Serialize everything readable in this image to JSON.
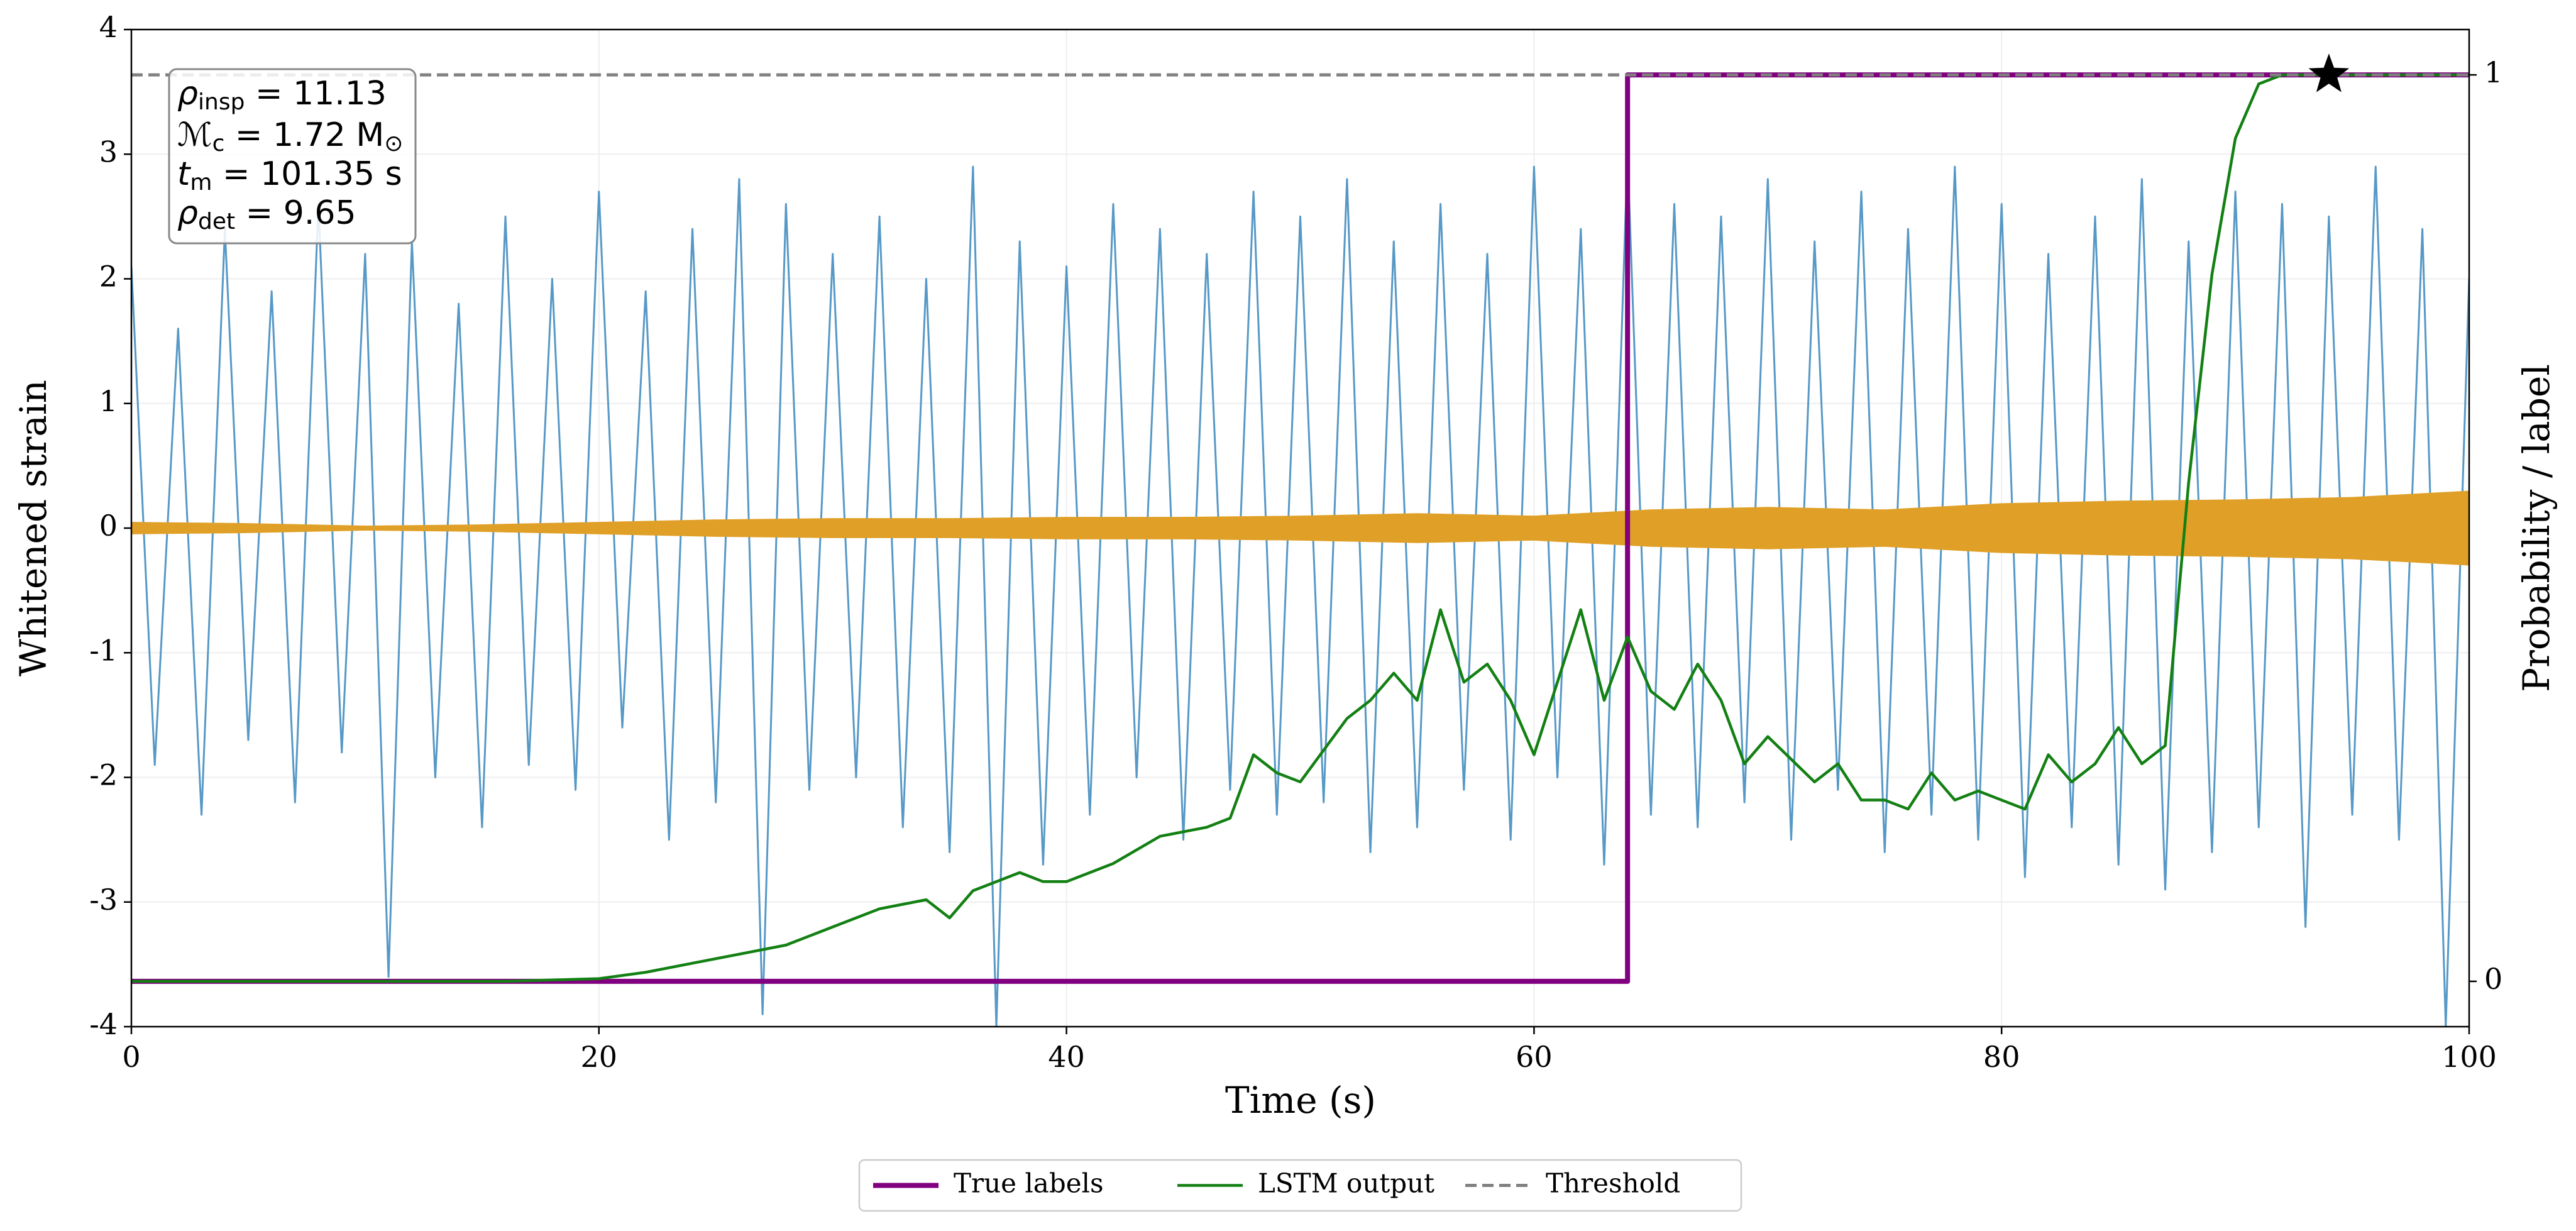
{
  "chart_data": {
    "type": "line",
    "xlabel": "Time (s)",
    "ylabel": "Whitened strain",
    "y2label": "Probability / label",
    "xlim": [
      0,
      100
    ],
    "xticks": [
      0,
      20,
      40,
      60,
      80,
      100
    ],
    "ylim": [
      -4,
      4
    ],
    "yticks": [
      -4,
      -3,
      -2,
      -1,
      0,
      1,
      2,
      3,
      4
    ],
    "y2lim": [
      -0.05,
      1.05
    ],
    "y2ticks": [
      0,
      1
    ],
    "grid": true,
    "legend": "lower center",
    "annotation": [
      {
        "main": "ρ",
        "sub": "insp",
        "rest": " = 11.13"
      },
      {
        "main": "ℳ",
        "sub": "c",
        "rest": " = 1.72 M",
        "sub2": "⊙"
      },
      {
        "main": "t",
        "sub": "m",
        "rest": " = 101.35 s"
      },
      {
        "main": "ρ",
        "sub": "det",
        "rest": " = 9.65"
      }
    ],
    "series": [
      {
        "color": "#5698c6",
        "x": [
          0,
          1,
          2,
          3,
          4,
          5,
          6,
          7,
          8,
          9,
          10,
          11,
          12,
          13,
          14,
          15,
          16,
          17,
          18,
          19,
          20,
          21,
          22,
          23,
          24,
          25,
          26,
          27,
          28,
          29,
          30,
          31,
          32,
          33,
          34,
          35,
          36,
          37,
          38,
          39,
          40,
          41,
          42,
          43,
          44,
          45,
          46,
          47,
          48,
          49,
          50,
          51,
          52,
          53,
          54,
          55,
          56,
          57,
          58,
          59,
          60,
          61,
          62,
          63,
          64,
          65,
          66,
          67,
          68,
          69,
          70,
          71,
          72,
          73,
          74,
          75,
          76,
          77,
          78,
          79,
          80,
          81,
          82,
          83,
          84,
          85,
          86,
          87,
          88,
          89,
          90,
          91,
          92,
          93,
          94,
          95,
          96,
          97,
          98,
          99,
          100
        ],
        "values": [
          2.1,
          -1.9,
          1.6,
          -2.3,
          2.4,
          -1.7,
          1.9,
          -2.2,
          2.6,
          -1.8,
          2.2,
          -3.6,
          2.3,
          -2.0,
          1.8,
          -2.4,
          2.5,
          -1.9,
          2.0,
          -2.1,
          2.7,
          -1.6,
          1.9,
          -2.5,
          2.4,
          -2.2,
          2.8,
          -3.9,
          2.6,
          -2.1,
          2.2,
          -2.0,
          2.5,
          -2.4,
          2.0,
          -2.6,
          2.9,
          -4.0,
          2.3,
          -2.7,
          2.1,
          -2.3,
          2.6,
          -2.0,
          2.4,
          -2.5,
          2.2,
          -2.1,
          2.7,
          -2.3,
          2.5,
          -2.2,
          2.8,
          -2.6,
          2.3,
          -2.4,
          2.6,
          -2.1,
          2.2,
          -2.5,
          2.9,
          -2.0,
          2.4,
          -2.7,
          3.0,
          -2.3,
          2.6,
          -2.4,
          2.5,
          -2.2,
          2.8,
          -2.5,
          2.3,
          -2.1,
          2.7,
          -2.6,
          2.4,
          -2.3,
          2.9,
          -2.5,
          2.6,
          -2.8,
          2.2,
          -2.4,
          2.5,
          -2.7,
          2.8,
          -2.9,
          2.3,
          -2.6,
          2.7,
          -2.4,
          2.6,
          -3.2,
          2.5,
          -2.3,
          2.9,
          -2.5,
          2.4,
          -4.0,
          2.0
        ]
      },
      {
        "color": "#e0a028",
        "x": [
          0,
          5,
          10,
          15,
          20,
          25,
          30,
          35,
          40,
          45,
          50,
          55,
          60,
          65,
          70,
          75,
          80,
          85,
          90,
          95,
          100
        ],
        "upper": [
          0.05,
          0.04,
          0.02,
          0.03,
          0.05,
          0.07,
          0.08,
          0.08,
          0.09,
          0.09,
          0.1,
          0.12,
          0.1,
          0.15,
          0.17,
          0.15,
          0.2,
          0.22,
          0.23,
          0.25,
          0.3
        ],
        "lower": [
          -0.05,
          -0.04,
          -0.02,
          -0.03,
          -0.05,
          -0.07,
          -0.08,
          -0.08,
          -0.09,
          -0.09,
          -0.1,
          -0.12,
          -0.1,
          -0.15,
          -0.17,
          -0.15,
          -0.2,
          -0.22,
          -0.23,
          -0.25,
          -0.3
        ]
      },
      {
        "name": "True labels",
        "color": "#800080",
        "axis": "y2",
        "x": [
          0,
          64,
          64,
          100
        ],
        "values": [
          0,
          0,
          1,
          1
        ]
      },
      {
        "name": "LSTM output",
        "color": "#138013",
        "axis": "y2",
        "x": [
          0,
          10,
          16,
          20,
          22,
          24,
          26,
          28,
          30,
          32,
          34,
          35,
          36,
          38,
          39,
          40,
          42,
          44,
          46,
          47,
          48,
          49,
          50,
          52,
          53,
          54,
          55,
          56,
          57,
          58,
          59,
          60,
          61,
          62,
          63,
          64,
          65,
          66,
          67,
          68,
          69,
          70,
          72,
          73,
          74,
          75,
          76,
          77,
          78,
          79,
          80,
          81,
          82,
          83,
          84,
          85,
          86,
          87,
          88,
          89,
          90,
          91,
          92,
          100
        ],
        "values": [
          0,
          0,
          0,
          0.003,
          0.01,
          0.02,
          0.03,
          0.04,
          0.06,
          0.08,
          0.09,
          0.07,
          0.1,
          0.12,
          0.11,
          0.11,
          0.13,
          0.16,
          0.17,
          0.18,
          0.25,
          0.23,
          0.22,
          0.29,
          0.31,
          0.34,
          0.31,
          0.41,
          0.33,
          0.35,
          0.31,
          0.25,
          0.33,
          0.41,
          0.31,
          0.38,
          0.32,
          0.3,
          0.35,
          0.31,
          0.24,
          0.27,
          0.22,
          0.24,
          0.2,
          0.2,
          0.19,
          0.23,
          0.2,
          0.21,
          0.2,
          0.19,
          0.25,
          0.22,
          0.24,
          0.28,
          0.24,
          0.26,
          0.55,
          0.78,
          0.93,
          0.99,
          1,
          1
        ]
      },
      {
        "name": "Threshold",
        "color": "#808080",
        "axis": "y2",
        "dash": true,
        "x": [
          0,
          100
        ],
        "values": [
          1,
          1
        ]
      }
    ],
    "star": {
      "x": 94,
      "value": 1,
      "color": "#000000"
    }
  }
}
